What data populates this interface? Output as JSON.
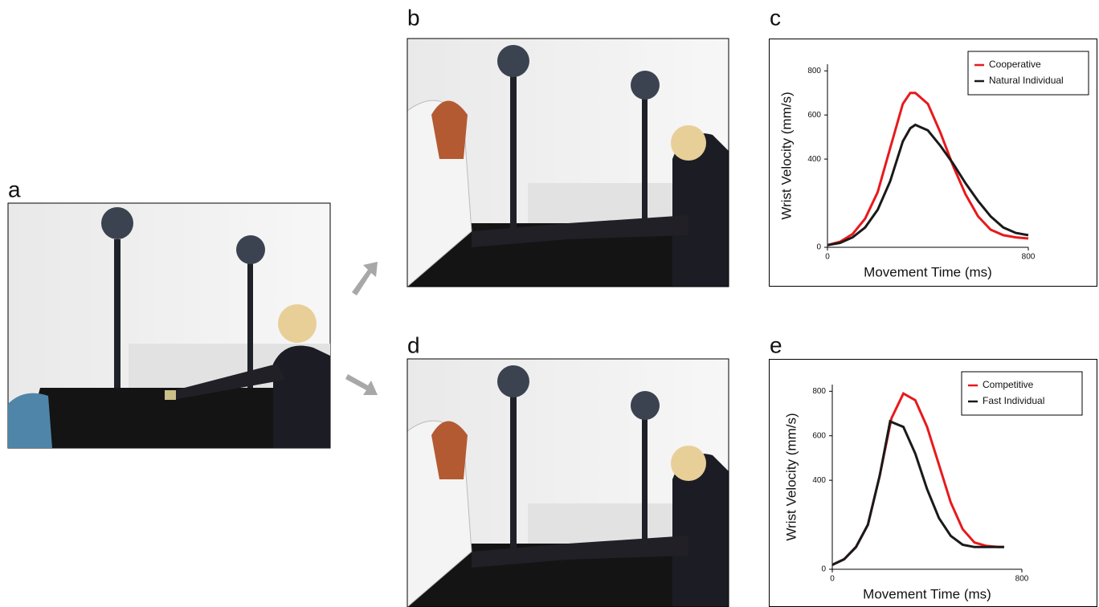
{
  "panel_labels": [
    "a",
    "b",
    "c",
    "d",
    "e"
  ],
  "chart_data": [
    {
      "type": "line",
      "xlabel": "Movement Time (ms)",
      "ylabel": "Wrist Velocity (mm/s)",
      "x": [
        0,
        50,
        100,
        150,
        200,
        250,
        300,
        330,
        350,
        400,
        450,
        500,
        550,
        600,
        650,
        700,
        750,
        800
      ],
      "series": [
        {
          "name": "Cooperative",
          "color": "#e8191c",
          "values": [
            10,
            25,
            60,
            130,
            250,
            450,
            650,
            700,
            700,
            650,
            520,
            370,
            240,
            140,
            80,
            55,
            45,
            40
          ]
        },
        {
          "name": "Natural Individual",
          "color": "#1a1a1a",
          "values": [
            10,
            20,
            45,
            90,
            170,
            300,
            480,
            540,
            555,
            530,
            460,
            380,
            290,
            210,
            140,
            90,
            65,
            55
          ]
        }
      ],
      "xlim": [
        0,
        800
      ],
      "xticks": [
        0,
        800
      ],
      "ylim": [
        0,
        830
      ],
      "yticks": [
        0,
        400,
        600,
        800
      ],
      "legend": "upper right"
    },
    {
      "type": "line",
      "xlabel": "Movement Time (ms)",
      "ylabel": "Wrist Velocity (mm/s)",
      "x": [
        0,
        50,
        100,
        150,
        200,
        244,
        250,
        300,
        350,
        400,
        450,
        500,
        550,
        600,
        650,
        700,
        725
      ],
      "series": [
        {
          "name": "Competitive",
          "color": "#e8191c",
          "values": [
            20,
            45,
            100,
            200,
            420,
            650,
            680,
            790,
            760,
            640,
            470,
            300,
            180,
            120,
            105,
            100,
            100
          ]
        },
        {
          "name": "Fast Individual",
          "color": "#1a1a1a",
          "values": [
            20,
            45,
            100,
            200,
            420,
            665,
            662,
            640,
            520,
            360,
            230,
            150,
            110,
            100,
            100,
            100,
            100
          ]
        }
      ],
      "xlim": [
        0,
        800
      ],
      "xticks": [
        0,
        800
      ],
      "ylim": [
        0,
        830
      ],
      "yticks": [
        0,
        400,
        600,
        800
      ],
      "legend": "upper right"
    }
  ]
}
